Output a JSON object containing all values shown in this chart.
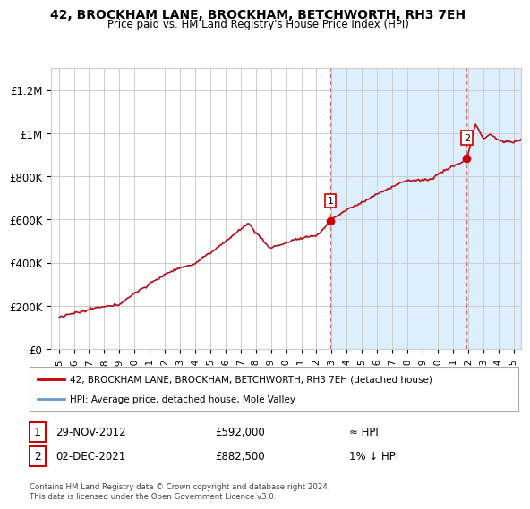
{
  "title": "42, BROCKHAM LANE, BROCKHAM, BETCHWORTH, RH3 7EH",
  "subtitle": "Price paid vs. HM Land Registry's House Price Index (HPI)",
  "ylabel_ticks": [
    "£0",
    "£200K",
    "£400K",
    "£600K",
    "£800K",
    "£1M",
    "£1.2M"
  ],
  "ytick_values": [
    0,
    200000,
    400000,
    600000,
    800000,
    1000000,
    1200000
  ],
  "ylim": [
    0,
    1300000
  ],
  "xlim_start": 1994.5,
  "xlim_end": 2025.5,
  "line1_color": "#cc0000",
  "line2_color": "#6699cc",
  "shade_color": "#ddeeff",
  "point1_x": 2012.91,
  "point1_y": 592000,
  "point2_x": 2021.92,
  "point2_y": 882500,
  "legend_line1": "42, BROCKHAM LANE, BROCKHAM, BETCHWORTH, RH3 7EH (detached house)",
  "legend_line2": "HPI: Average price, detached house, Mole Valley",
  "note1_date": "29-NOV-2012",
  "note1_price": "£592,000",
  "note1_hpi": "≈ HPI",
  "note2_date": "02-DEC-2021",
  "note2_price": "£882,500",
  "note2_hpi": "1% ↓ HPI",
  "footer": "Contains HM Land Registry data © Crown copyright and database right 2024.\nThis data is licensed under the Open Government Licence v3.0.",
  "background_color": "#ffffff",
  "shade_start_x": 2012.91
}
